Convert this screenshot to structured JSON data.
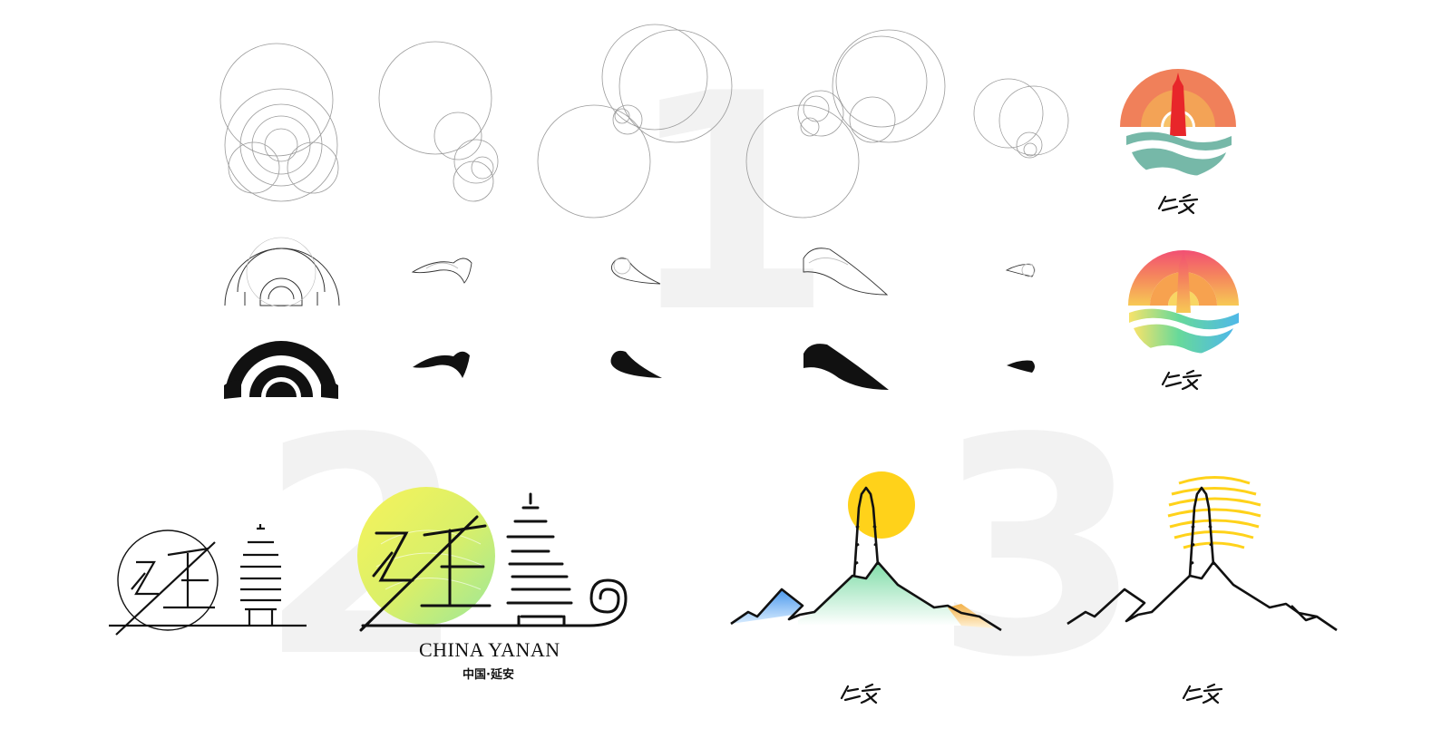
{
  "background_numbers": [
    "1",
    "2",
    "3"
  ],
  "brand": {
    "english_name": "CHINA YANAN",
    "chinese_name": "中国·延安"
  },
  "colors": {
    "sun_orange": "#f0805a",
    "sun_gold": "#f3a356",
    "pagoda_red": "#e8262a",
    "wave_teal": "#76b8a8",
    "gradient_pink": "#f24f73",
    "gradient_yellow": "#f7e36a",
    "gradient_green": "#67d99a",
    "mountain_green": "#8fe3b0",
    "mountain_blue": "#5aa7ee",
    "mountain_orange": "#f5b94e",
    "sun_yellow": "#ffd21a"
  },
  "icons": [
    "construction-circles",
    "sun-arch",
    "wave-stroke",
    "pagoda-badge",
    "yan-character-logo",
    "mountain-pagoda"
  ]
}
